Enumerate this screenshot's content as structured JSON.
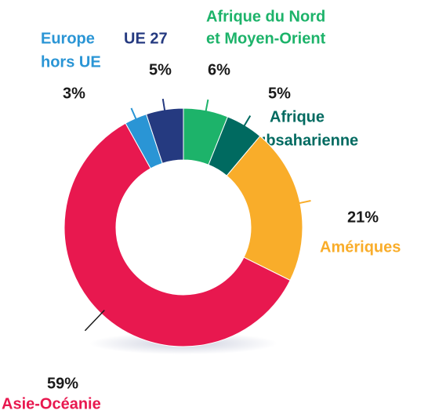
{
  "chart_data": {
    "type": "donut",
    "categories": [
      [
        "Afrique du Nord",
        "et Moyen-Orient"
      ],
      [
        "Afrique",
        "subsaharienne"
      ],
      [
        "Amériques"
      ],
      [
        "Asie-Océanie"
      ],
      [
        "Europe",
        "hors UE"
      ],
      [
        "UE 27"
      ]
    ],
    "values": [
      6,
      5,
      21,
      59,
      3,
      5
    ],
    "value_labels": [
      "6%",
      "5%",
      "21%",
      "59%",
      "3%",
      "5%"
    ],
    "colors": [
      "#1db36a",
      "#006a60",
      "#f9ad2a",
      "#e8184f",
      "#2a95d5",
      "#253a80"
    ]
  }
}
